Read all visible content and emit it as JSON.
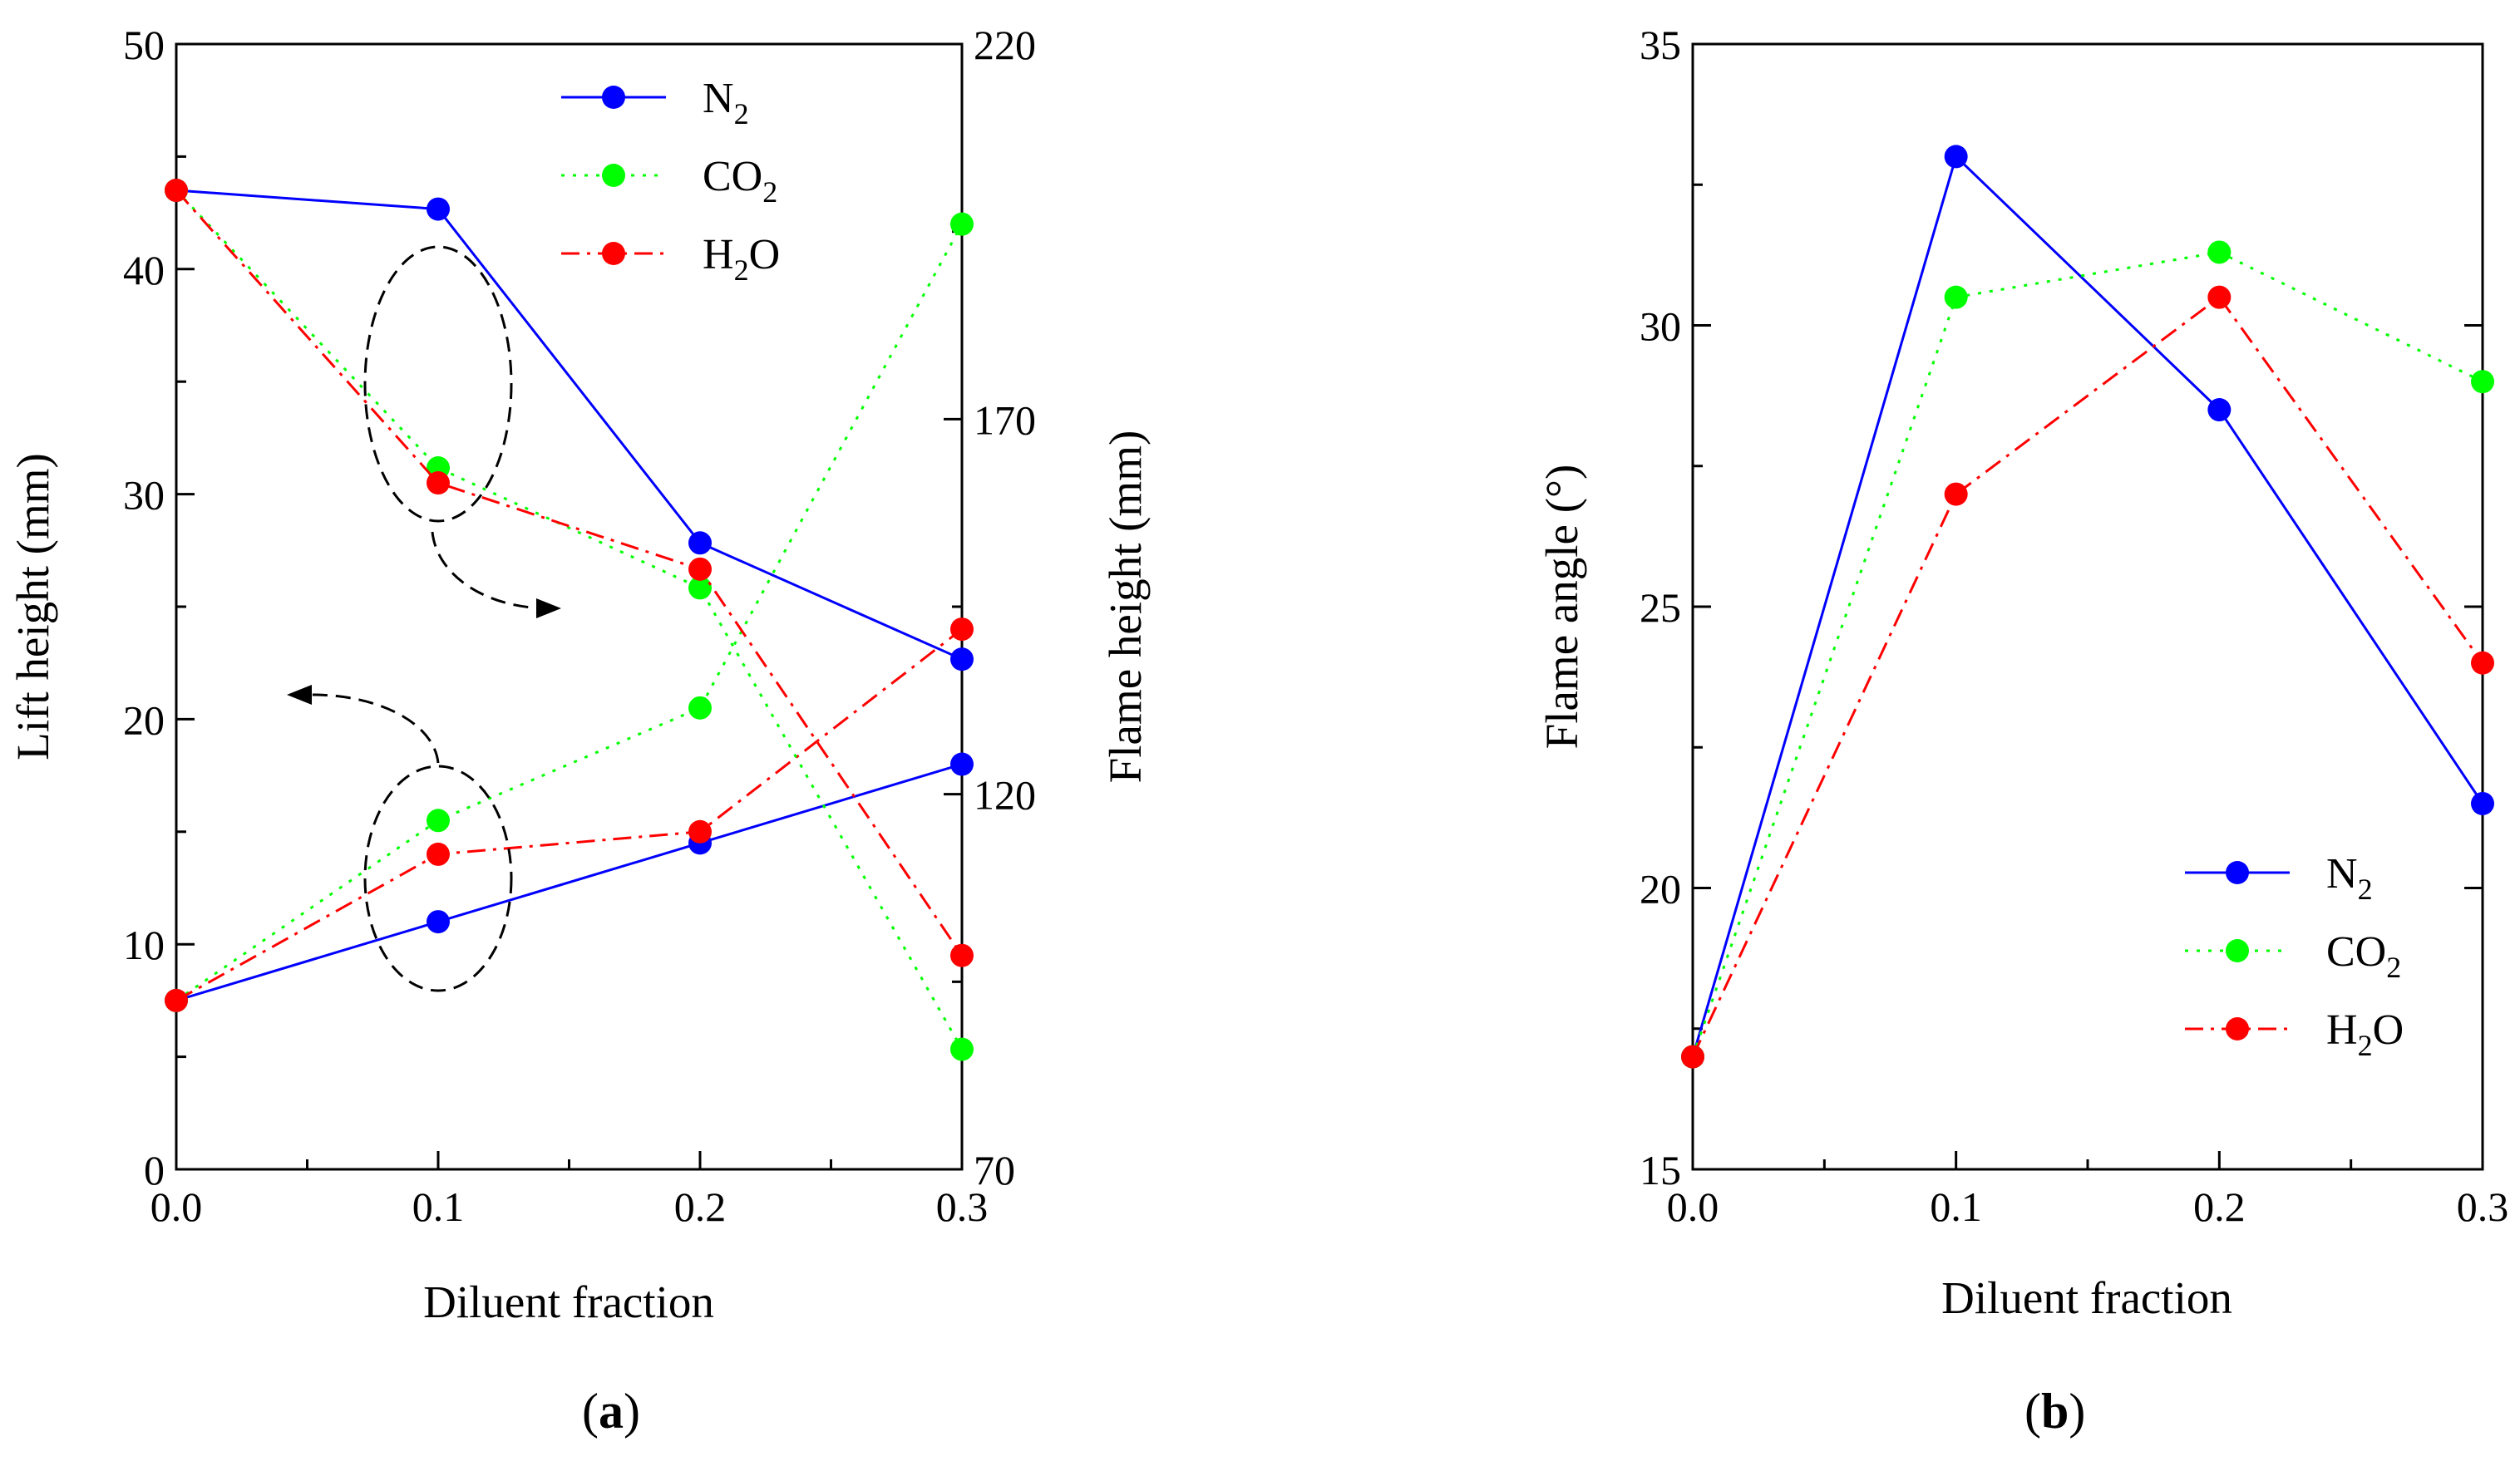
{
  "chart_data": [
    {
      "panel": "a",
      "panel_label_parts": [
        "(",
        "a",
        ")"
      ],
      "type": "line",
      "xlabel": "Diluent fraction",
      "ylabel": "Lift height (mm)",
      "y2label": "Flame height (mm)",
      "xlim": [
        0,
        0.3
      ],
      "ylim": [
        0,
        50
      ],
      "y2lim": [
        70,
        220
      ],
      "xticks": [
        "0.0",
        "0.1",
        "0.2",
        "0.3"
      ],
      "yticks": [
        "0",
        "10",
        "20",
        "30",
        "40",
        "50"
      ],
      "y2ticks": [
        "70",
        "120",
        "170",
        "220"
      ],
      "legend_position": "top-center",
      "x": [
        0.0,
        0.1,
        0.2,
        0.3
      ],
      "series": [
        {
          "name": "N2",
          "label_main": "N",
          "label_sub": "2",
          "label_after": "",
          "color": "#0000ff",
          "dash": "solid",
          "axis": "left",
          "quantity": "lift height",
          "values": [
            7.5,
            11.0,
            14.5,
            18.0
          ]
        },
        {
          "name": "CO2",
          "label_main": "CO",
          "label_sub": "2",
          "label_after": "",
          "color": "#00ff00",
          "dash": "dotted",
          "axis": "left",
          "quantity": "lift height",
          "values": [
            7.5,
            15.5,
            20.5,
            42.0
          ]
        },
        {
          "name": "H2O",
          "label_main": "H",
          "label_sub": "2",
          "label_after": "O",
          "color": "#ff0000",
          "dash": "dashdot",
          "axis": "left",
          "quantity": "lift height",
          "values": [
            7.5,
            14.0,
            15.0,
            24.0
          ]
        },
        {
          "name": "N2",
          "color": "#0000ff",
          "dash": "solid",
          "axis": "right",
          "quantity": "flame height",
          "values": [
            200.5,
            198.0,
            153.5,
            138.0
          ]
        },
        {
          "name": "CO2",
          "color": "#00ff00",
          "dash": "dotted",
          "axis": "right",
          "quantity": "flame height",
          "values": [
            200.5,
            163.5,
            147.5,
            86.0
          ]
        },
        {
          "name": "H2O",
          "color": "#ff0000",
          "dash": "dashdot",
          "axis": "right",
          "quantity": "flame height",
          "values": [
            200.5,
            161.5,
            150.0,
            98.5
          ]
        }
      ],
      "annotations": [
        "dashed ellipse around x=0.1 upper (flame height) markers with arrow pointing right",
        "dashed ellipse around x=0.1 lower (lift height) markers with arrow pointing left"
      ]
    },
    {
      "panel": "b",
      "panel_label_parts": [
        "(",
        "b",
        ")"
      ],
      "type": "line",
      "xlabel": "Diluent fraction",
      "ylabel": "Flame angle (°)",
      "xlim": [
        0,
        0.3
      ],
      "ylim": [
        15,
        35
      ],
      "xticks": [
        "0.0",
        "0.1",
        "0.2",
        "0.3"
      ],
      "yticks": [
        "15",
        "20",
        "25",
        "30",
        "35"
      ],
      "legend_position": "bottom-right",
      "x": [
        0.0,
        0.1,
        0.2,
        0.3
      ],
      "series": [
        {
          "name": "N2",
          "label_main": "N",
          "label_sub": "2",
          "label_after": "",
          "color": "#0000ff",
          "dash": "solid",
          "values": [
            17.0,
            33.0,
            28.5,
            21.5
          ]
        },
        {
          "name": "CO2",
          "label_main": "CO",
          "label_sub": "2",
          "label_after": "",
          "color": "#00ff00",
          "dash": "dotted",
          "values": [
            17.0,
            30.5,
            31.3,
            29.0
          ]
        },
        {
          "name": "H2O",
          "label_main": "H",
          "label_sub": "2",
          "label_after": "O",
          "color": "#ff0000",
          "dash": "dashdot",
          "values": [
            17.0,
            27.0,
            30.5,
            24.0
          ]
        }
      ]
    }
  ]
}
